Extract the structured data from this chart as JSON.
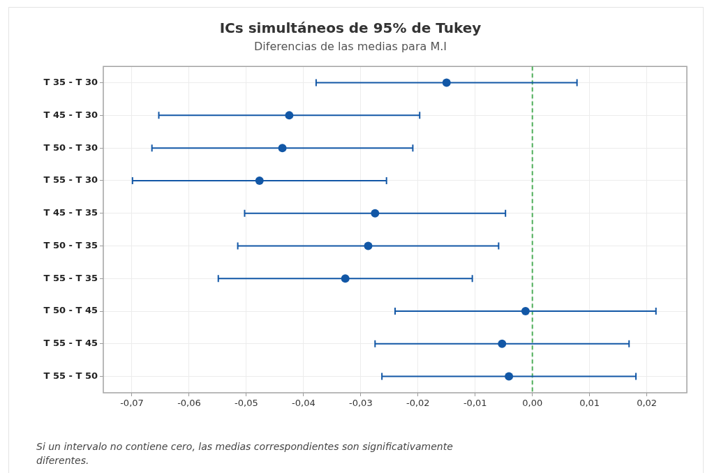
{
  "chart_data": {
    "type": "scatter",
    "orientation": "horizontal",
    "title": "ICs simultáneos de 95% de Tukey",
    "subtitle": "Diferencias de las medias para M.I",
    "categories": [
      "T 35 - T 30",
      "T 45 - T 30",
      "T 50 - T 30",
      "T 55 - T 30",
      "T 45 - T 35",
      "T 50 - T 35",
      "T 55 - T 35",
      "T 50 - T 45",
      "T 55 - T 45",
      "T 55 - T 50"
    ],
    "values": [
      -0.015,
      -0.0425,
      -0.0437,
      -0.0477,
      -0.0275,
      -0.0287,
      -0.0327,
      -0.0012,
      -0.0053,
      -0.0041
    ],
    "errors": [
      0.0228,
      0.0228,
      0.0228,
      0.0222,
      0.0228,
      0.0228,
      0.0222,
      0.0228,
      0.0222,
      0.0222
    ],
    "color": "#1257a6",
    "marker": "circle",
    "xlim": [
      -0.075,
      0.027
    ],
    "xticks": [
      {
        "value": -0.07,
        "label": "-0,07"
      },
      {
        "value": -0.06,
        "label": "-0,06"
      },
      {
        "value": -0.05,
        "label": "-0,05"
      },
      {
        "value": -0.04,
        "label": "-0,04"
      },
      {
        "value": -0.03,
        "label": "-0,03"
      },
      {
        "value": -0.02,
        "label": "-0,02"
      },
      {
        "value": -0.01,
        "label": "-0,01"
      },
      {
        "value": 0,
        "label": "0,00"
      },
      {
        "value": 0.01,
        "label": "0,01"
      },
      {
        "value": 0.02,
        "label": "0,02"
      }
    ],
    "grid": true,
    "ref_lines": [
      {
        "axis": "x",
        "value": 0,
        "color": "#4fae5a",
        "line_style": "dashed"
      }
    ],
    "annotations": [
      "Si un intervalo no contiene cero, las medias correspondientes son significativamente diferentes."
    ]
  }
}
